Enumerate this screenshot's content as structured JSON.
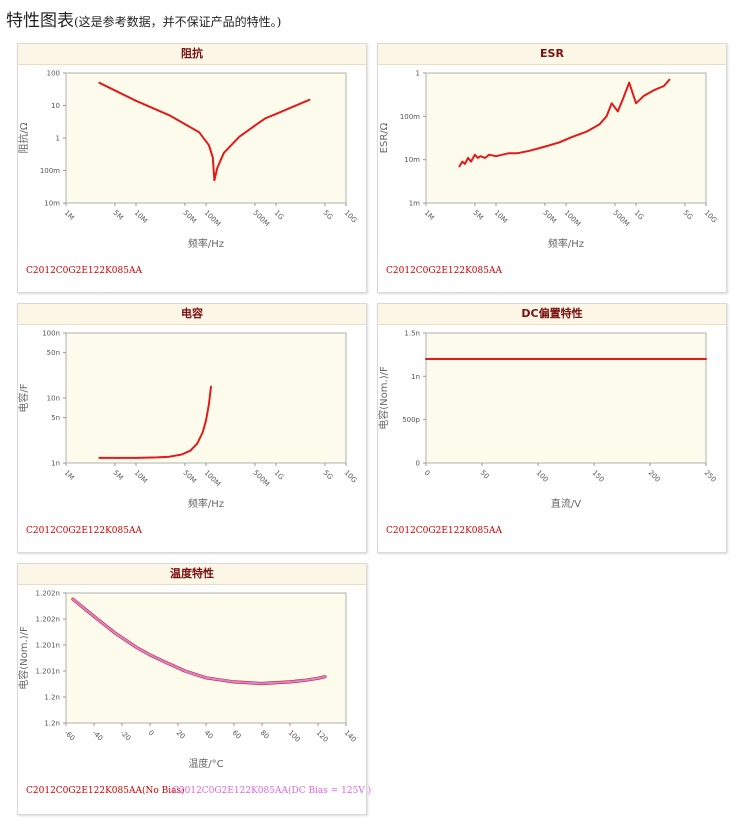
{
  "page": {
    "title": "特性图表",
    "note": "(这是参考数据，并不保证产品的特性。)"
  },
  "panels": [
    {
      "header": "阻抗",
      "parts": [
        "C2012C0G2E122K085AA"
      ],
      "part_colors": [
        "#cc0000"
      ]
    },
    {
      "header": "ESR",
      "parts": [
        "C2012C0G2E122K085AA"
      ],
      "part_colors": [
        "#cc0000"
      ]
    },
    {
      "header": "电容",
      "parts": [
        "C2012C0G2E122K085AA"
      ],
      "part_colors": [
        "#cc0000"
      ]
    },
    {
      "header": "DC偏置特性",
      "parts": [
        "C2012C0G2E122K085AA"
      ],
      "part_colors": [
        "#cc0000"
      ]
    },
    {
      "header": "温度特性",
      "parts": [
        "C2012C0G2E122K085AA(No Bias)",
        "C2012C0G2E122K085AA(DC Bias = 125V )"
      ],
      "part_colors": [
        "#cc0000",
        "#dd66dd"
      ]
    }
  ],
  "colors": {
    "plot_bg": "#fdfcec",
    "series_red": "#e21a1a",
    "series_purple": "#cc88dd",
    "header_text": "#7a1010"
  },
  "chart_data": [
    {
      "type": "line",
      "title": "阻抗",
      "xlabel": "频率/Hz",
      "ylabel": "阻抗/Ω",
      "x_scale": "log",
      "y_scale": "log",
      "xlim": [
        1000000,
        10000000000
      ],
      "ylim": [
        0.01,
        100
      ],
      "x_ticks": [
        {
          "v": 1000000,
          "label": "1M"
        },
        {
          "v": 5000000,
          "label": "5M"
        },
        {
          "v": 10000000,
          "label": "10M"
        },
        {
          "v": 50000000,
          "label": "50M"
        },
        {
          "v": 100000000,
          "label": "100M"
        },
        {
          "v": 500000000,
          "label": "500M"
        },
        {
          "v": 1000000000,
          "label": "1G"
        },
        {
          "v": 5000000000,
          "label": "5G"
        },
        {
          "v": 10000000000,
          "label": "10G"
        }
      ],
      "y_ticks": [
        {
          "v": 100,
          "label": "100"
        },
        {
          "v": 10,
          "label": "10"
        },
        {
          "v": 1,
          "label": "1"
        },
        {
          "v": 0.1,
          "label": "100m"
        },
        {
          "v": 0.01,
          "label": "10m"
        }
      ],
      "series": [
        {
          "color": "#e21a1a",
          "x": [
            3000000,
            10000000,
            30000000,
            80000000,
            110000000,
            125000000,
            132000000,
            145000000,
            180000000,
            300000000,
            500000000,
            700000000,
            1000000000,
            3000000000
          ],
          "y": [
            50,
            14,
            5,
            1.5,
            0.6,
            0.25,
            0.05,
            0.12,
            0.35,
            1.1,
            2.4,
            4,
            5.5,
            15
          ]
        }
      ]
    },
    {
      "type": "line",
      "title": "ESR",
      "xlabel": "频率/Hz",
      "ylabel": "ESR/Ω",
      "x_scale": "log",
      "y_scale": "log",
      "xlim": [
        1000000,
        10000000000
      ],
      "ylim": [
        0.001,
        1
      ],
      "x_ticks": [
        {
          "v": 1000000,
          "label": "1M"
        },
        {
          "v": 5000000,
          "label": "5M"
        },
        {
          "v": 10000000,
          "label": "10M"
        },
        {
          "v": 50000000,
          "label": "50M"
        },
        {
          "v": 100000000,
          "label": "100M"
        },
        {
          "v": 500000000,
          "label": "500M"
        },
        {
          "v": 1000000000,
          "label": "1G"
        },
        {
          "v": 5000000000,
          "label": "5G"
        },
        {
          "v": 10000000000,
          "label": "10G"
        }
      ],
      "y_ticks": [
        {
          "v": 1,
          "label": "1"
        },
        {
          "v": 0.1,
          "label": "100m"
        },
        {
          "v": 0.01,
          "label": "10m"
        },
        {
          "v": 0.001,
          "label": "1m"
        }
      ],
      "series": [
        {
          "color": "#e21a1a",
          "x": [
            3000000,
            3300000,
            3600000,
            4000000,
            4400000,
            5000000,
            5500000,
            6000000,
            7000000,
            8000000,
            10000000,
            15000000,
            20000000,
            30000000,
            50000000,
            80000000,
            120000000,
            200000000,
            300000000,
            380000000,
            450000000,
            550000000,
            650000000,
            800000000,
            1000000000,
            1300000000,
            1800000000,
            2500000000,
            3000000000
          ],
          "y": [
            0.007,
            0.009,
            0.008,
            0.011,
            0.009,
            0.013,
            0.011,
            0.012,
            0.011,
            0.013,
            0.012,
            0.014,
            0.014,
            0.016,
            0.02,
            0.025,
            0.033,
            0.045,
            0.065,
            0.1,
            0.2,
            0.13,
            0.25,
            0.6,
            0.2,
            0.3,
            0.4,
            0.5,
            0.7
          ]
        }
      ]
    },
    {
      "type": "line",
      "title": "电容",
      "xlabel": "频率/Hz",
      "ylabel": "电容/F",
      "x_scale": "log",
      "y_scale": "log",
      "xlim": [
        1000000,
        10000000000
      ],
      "ylim": [
        1e-09,
        1e-07
      ],
      "x_ticks": [
        {
          "v": 1000000,
          "label": "1M"
        },
        {
          "v": 5000000,
          "label": "5M"
        },
        {
          "v": 10000000,
          "label": "10M"
        },
        {
          "v": 50000000,
          "label": "50M"
        },
        {
          "v": 100000000,
          "label": "100M"
        },
        {
          "v": 500000000,
          "label": "500M"
        },
        {
          "v": 1000000000,
          "label": "1G"
        },
        {
          "v": 5000000000,
          "label": "5G"
        },
        {
          "v": 10000000000,
          "label": "10G"
        }
      ],
      "y_ticks": [
        {
          "v": 1e-07,
          "label": "100n"
        },
        {
          "v": 5e-08,
          "label": "50n"
        },
        {
          "v": 1e-08,
          "label": "10n"
        },
        {
          "v": 5e-09,
          "label": "5n"
        },
        {
          "v": 1e-09,
          "label": "1n"
        }
      ],
      "series": [
        {
          "color": "#e21a1a",
          "x": [
            3000000,
            10000000,
            20000000,
            30000000,
            45000000,
            60000000,
            75000000,
            90000000,
            100000000,
            110000000,
            118000000
          ],
          "y": [
            1.2e-09,
            1.2e-09,
            1.22e-09,
            1.25e-09,
            1.35e-09,
            1.55e-09,
            2e-09,
            3e-09,
            4.5e-09,
            8e-09,
            1.5e-08
          ]
        }
      ]
    },
    {
      "type": "line",
      "title": "DC偏置特性",
      "xlabel": "直流/V",
      "ylabel": "电容(Nom.)/F",
      "x_scale": "linear",
      "y_scale": "linear",
      "xlim": [
        0,
        250
      ],
      "ylim": [
        0,
        1.5e-09
      ],
      "x_ticks": [
        {
          "v": 0,
          "label": "0"
        },
        {
          "v": 50,
          "label": "50"
        },
        {
          "v": 100,
          "label": "100"
        },
        {
          "v": 150,
          "label": "150"
        },
        {
          "v": 200,
          "label": "200"
        },
        {
          "v": 250,
          "label": "250"
        }
      ],
      "y_ticks": [
        {
          "v": 1.5e-09,
          "label": "1.5n"
        },
        {
          "v": 1e-09,
          "label": "1n"
        },
        {
          "v": 5e-10,
          "label": "500p"
        },
        {
          "v": 0,
          "label": "0"
        }
      ],
      "series": [
        {
          "color": "#e21a1a",
          "x": [
            0,
            250
          ],
          "y": [
            1.2e-09,
            1.2e-09
          ]
        }
      ]
    },
    {
      "type": "line",
      "title": "温度特性",
      "xlabel": "温度/°C",
      "ylabel": "电容(Nom.)/F",
      "x_scale": "linear",
      "y_scale": "linear",
      "xlim": [
        -60,
        140
      ],
      "ylim": [
        1.2e-09,
        1.2025e-09
      ],
      "x_ticks": [
        {
          "v": -60,
          "label": "-60"
        },
        {
          "v": -40,
          "label": "-40"
        },
        {
          "v": -20,
          "label": "-20"
        },
        {
          "v": 0,
          "label": "0"
        },
        {
          "v": 20,
          "label": "20"
        },
        {
          "v": 40,
          "label": "40"
        },
        {
          "v": 60,
          "label": "60"
        },
        {
          "v": 80,
          "label": "80"
        },
        {
          "v": 100,
          "label": "100"
        },
        {
          "v": 120,
          "label": "120"
        },
        {
          "v": 140,
          "label": "140"
        }
      ],
      "y_ticks": [
        {
          "v": 1.2025e-09,
          "label": "1.202n"
        },
        {
          "v": 1.202e-09,
          "label": "1.202n"
        },
        {
          "v": 1.2015e-09,
          "label": "1.201n"
        },
        {
          "v": 1.201e-09,
          "label": "1.201n"
        },
        {
          "v": 1.2005e-09,
          "label": "1.2n"
        },
        {
          "v": 1.2e-09,
          "label": "1.2n"
        }
      ],
      "series": [
        {
          "name": "C2012C0G2E122K085AA(No Bias)",
          "color": "#e21a1a",
          "x": [
            -55,
            -40,
            -25,
            -10,
            0,
            10,
            25,
            40,
            60,
            80,
            100,
            110,
            120,
            125
          ],
          "y": [
            1.20238e-09,
            1.20205e-09,
            1.20173e-09,
            1.20146e-09,
            1.20131e-09,
            1.20118e-09,
            1.201e-09,
            1.20087e-09,
            1.20079e-09,
            1.20076e-09,
            1.20079e-09,
            1.20082e-09,
            1.20086e-09,
            1.20089e-09
          ]
        },
        {
          "name": "C2012C0G2E122K085AA(DC Bias = 125V )",
          "color": "#cc88dd",
          "x": [
            -55,
            -40,
            -25,
            -10,
            0,
            10,
            25,
            40,
            60,
            80,
            100,
            110,
            120,
            125
          ],
          "y": [
            1.20238e-09,
            1.20205e-09,
            1.20173e-09,
            1.20146e-09,
            1.20131e-09,
            1.20118e-09,
            1.201e-09,
            1.20087e-09,
            1.20079e-09,
            1.20076e-09,
            1.20079e-09,
            1.20082e-09,
            1.20086e-09,
            1.20089e-09
          ]
        }
      ]
    }
  ]
}
